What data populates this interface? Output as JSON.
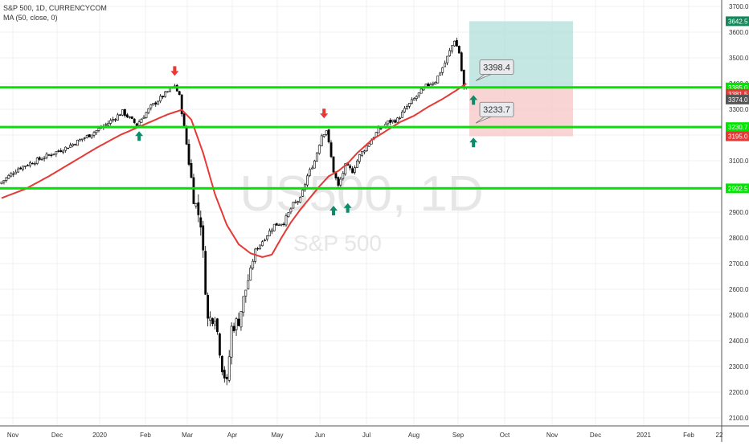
{
  "legend": {
    "symbol": "S&P 500, 1D, CURRENCYCOM",
    "indicator": "MA (50, close, 0)"
  },
  "watermark": {
    "ticker": "US500, 1D",
    "name": "S&P 500"
  },
  "colors": {
    "up_candle": "#ffffff",
    "down_candle": "#000000",
    "candle_outline": "#000000",
    "ma_line": "#e53935",
    "horizontal_level": "#00e600",
    "target_zone": "#b2dfdb",
    "stop_zone": "#f8c9c9",
    "up_arrow": "#0d8c6a",
    "down_arrow": "#e53935",
    "price_tag_current": "#555555",
    "price_tag_high": "#138a5d",
    "price_tag_stop": "#e53935",
    "price_tag_level": "#00e600"
  },
  "chart_data": {
    "type": "candlestick",
    "title": "S&P 500, 1D, CURRENCYCOM",
    "x_axis_labels": [
      "Nov",
      "Dec",
      "2020",
      "Feb",
      "Mar",
      "Apr",
      "May",
      "Jun",
      "Jul",
      "Aug",
      "Sep",
      "Oct",
      "Nov",
      "Dec",
      "2021",
      "Feb",
      "22"
    ],
    "y_axis_labels": [
      "2100.0",
      "2200.0",
      "2300.0",
      "2400.0",
      "2500.0",
      "2600.0",
      "2700.0",
      "2800.0",
      "2900.0",
      "3000.0",
      "3100.0",
      "3200.0",
      "3300.0",
      "3400.0",
      "3500.0",
      "3600.0",
      "3700.0"
    ],
    "ylim": [
      2070,
      3770
    ],
    "price_anchors": [
      [
        0,
        3010
      ],
      [
        8,
        3070
      ],
      [
        18,
        3110
      ],
      [
        28,
        3150
      ],
      [
        38,
        3200
      ],
      [
        45,
        3240
      ],
      [
        52,
        3290
      ],
      [
        58,
        3240
      ],
      [
        64,
        3310
      ],
      [
        70,
        3360
      ],
      [
        74,
        3393
      ],
      [
        76,
        3350
      ],
      [
        78,
        3230
      ],
      [
        80,
        3100
      ],
      [
        82,
        2960
      ],
      [
        85,
        2860
      ],
      [
        88,
        2480
      ],
      [
        91,
        2500
      ],
      [
        94,
        2300
      ],
      [
        96,
        2230
      ],
      [
        98,
        2450
      ],
      [
        101,
        2480
      ],
      [
        104,
        2600
      ],
      [
        108,
        2750
      ],
      [
        112,
        2800
      ],
      [
        116,
        2850
      ],
      [
        120,
        2860
      ],
      [
        124,
        2930
      ],
      [
        127,
        2950
      ],
      [
        130,
        3040
      ],
      [
        133,
        3100
      ],
      [
        136,
        3200
      ],
      [
        138,
        3220
      ],
      [
        141,
        3060
      ],
      [
        143,
        3000
      ],
      [
        146,
        3080
      ],
      [
        149,
        3060
      ],
      [
        152,
        3120
      ],
      [
        156,
        3170
      ],
      [
        160,
        3220
      ],
      [
        164,
        3250
      ],
      [
        168,
        3260
      ],
      [
        172,
        3310
      ],
      [
        176,
        3350
      ],
      [
        180,
        3390
      ],
      [
        184,
        3410
      ],
      [
        188,
        3480
      ],
      [
        192,
        3570
      ],
      [
        194,
        3520
      ],
      [
        196,
        3380
      ]
    ],
    "moving_average_anchors": [
      [
        0,
        2955
      ],
      [
        10,
        2990
      ],
      [
        20,
        3040
      ],
      [
        30,
        3095
      ],
      [
        40,
        3150
      ],
      [
        50,
        3200
      ],
      [
        60,
        3240
      ],
      [
        70,
        3280
      ],
      [
        76,
        3298
      ],
      [
        80,
        3260
      ],
      [
        85,
        3130
      ],
      [
        90,
        2970
      ],
      [
        95,
        2850
      ],
      [
        100,
        2775
      ],
      [
        105,
        2740
      ],
      [
        110,
        2725
      ],
      [
        114,
        2735
      ],
      [
        118,
        2800
      ],
      [
        122,
        2860
      ],
      [
        126,
        2910
      ],
      [
        130,
        2955
      ],
      [
        134,
        3000
      ],
      [
        138,
        3040
      ],
      [
        142,
        3060
      ],
      [
        146,
        3090
      ],
      [
        150,
        3130
      ],
      [
        156,
        3180
      ],
      [
        162,
        3215
      ],
      [
        168,
        3250
      ],
      [
        174,
        3275
      ],
      [
        180,
        3310
      ],
      [
        186,
        3340
      ],
      [
        192,
        3375
      ],
      [
        196,
        3400
      ]
    ],
    "horizontal_levels": [
      3385.0,
      3230.7,
      2992.5
    ],
    "level_labels": [
      "3385.0",
      "3230.7",
      "2992.5"
    ],
    "position": {
      "entry": 3385.0,
      "target": 3642.5,
      "stop": 3195.0
    },
    "callouts": [
      {
        "text": "3398.4",
        "price": 3398.4
      },
      {
        "text": "3233.7",
        "price": 3233.7
      }
    ],
    "up_arrows": [
      {
        "bar": 58,
        "price": 3215
      },
      {
        "bar": 140,
        "price": 2925
      },
      {
        "bar": 146,
        "price": 2935
      },
      {
        "bar": 197,
        "price": 3355
      },
      {
        "bar": 197,
        "price": 3190
      }
    ],
    "down_arrows": [
      {
        "bar": 73,
        "price": 3430
      },
      {
        "bar": 136,
        "price": 3265
      }
    ],
    "price_tags": [
      {
        "text": "3642.5",
        "price": 3642.5,
        "style": "high"
      },
      {
        "text": "3385.0",
        "price": 3385.0,
        "style": "level"
      },
      {
        "text": "3381.5",
        "price": 3360.0,
        "style": "stop"
      },
      {
        "text": "3374.0",
        "price": 3338.0,
        "style": "current"
      },
      {
        "text": "3230.7",
        "price": 3230.7,
        "style": "level"
      },
      {
        "text": "3195.0",
        "price": 3195.0,
        "style": "stop"
      },
      {
        "text": "2992.5",
        "price": 2992.5,
        "style": "level"
      }
    ],
    "bars_count": 197,
    "grid": true
  }
}
